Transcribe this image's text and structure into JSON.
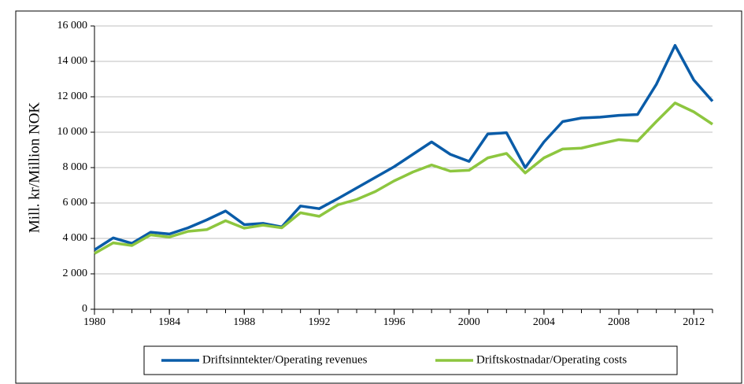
{
  "chart_data": {
    "type": "line",
    "y_label": "Mill. kr/Million NOK",
    "x": [
      1980,
      1981,
      1982,
      1983,
      1984,
      1985,
      1986,
      1987,
      1988,
      1989,
      1990,
      1991,
      1992,
      1993,
      1994,
      1995,
      1996,
      1997,
      1998,
      1999,
      2000,
      2001,
      2002,
      2003,
      2004,
      2005,
      2006,
      2007,
      2008,
      2009,
      2010,
      2011,
      2012,
      2013
    ],
    "series": [
      {
        "name": "Driftsinntekter/Operating revenues",
        "color": "#0a5ca8",
        "values": [
          3350,
          4030,
          3720,
          4350,
          4250,
          4600,
          5050,
          5550,
          4780,
          4850,
          4650,
          5830,
          5680,
          6250,
          6850,
          7450,
          8050,
          8750,
          9450,
          8750,
          8350,
          9900,
          9970,
          8000,
          9450,
          10600,
          10800,
          10850,
          10950,
          11000,
          12700,
          14900,
          12950,
          11750
        ]
      },
      {
        "name": "Driftskostnadar/Operating costs",
        "color": "#8dc63f",
        "values": [
          3150,
          3750,
          3600,
          4200,
          4080,
          4400,
          4500,
          5000,
          4580,
          4750,
          4600,
          5450,
          5250,
          5900,
          6200,
          6650,
          7250,
          7750,
          8150,
          7800,
          7850,
          8550,
          8800,
          7700,
          8550,
          9050,
          9100,
          9350,
          9580,
          9500,
          10600,
          11650,
          11150,
          10450
        ]
      }
    ],
    "xlim": [
      1980,
      2013
    ],
    "xticks": [
      1980,
      1984,
      1988,
      1992,
      1996,
      2000,
      2004,
      2008,
      2012
    ],
    "ylim": [
      0,
      16000
    ],
    "yticks": [
      0,
      {
        "value": 2000,
        "label": "2 000"
      },
      {
        "value": 4000,
        "label": "4 000"
      },
      {
        "value": 6000,
        "label": "6 000"
      },
      {
        "value": 8000,
        "label": "8 000"
      },
      {
        "value": 10000,
        "label": "10 000"
      },
      {
        "value": 12000,
        "label": "12 000"
      },
      {
        "value": 14000,
        "label": "14 000"
      },
      {
        "value": 16000,
        "label": "16 000"
      }
    ],
    "grid": true
  }
}
